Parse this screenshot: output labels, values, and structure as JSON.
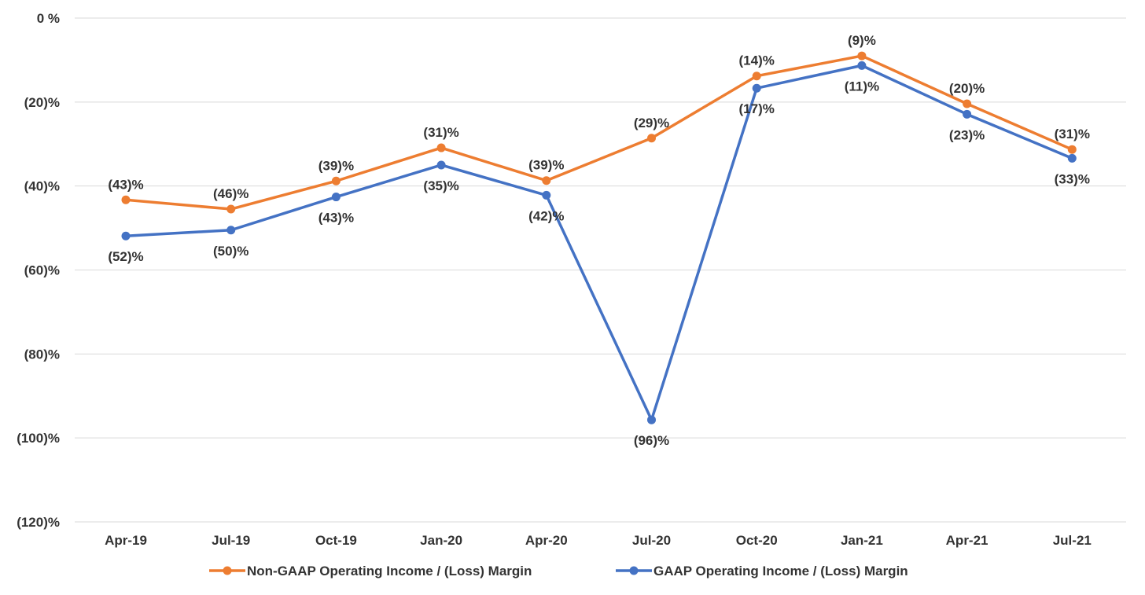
{
  "chart_data": {
    "type": "line",
    "title": "",
    "xlabel": "",
    "ylabel": "",
    "categories": [
      "Apr-19",
      "Jul-19",
      "Oct-19",
      "Jan-20",
      "Apr-20",
      "Jul-20",
      "Oct-20",
      "Jan-21",
      "Apr-21",
      "Jul-21"
    ],
    "ylim": [
      -120,
      0
    ],
    "yticks": [
      0,
      -20,
      -40,
      -60,
      -80,
      -100,
      -120
    ],
    "ytick_labels": [
      "0 %",
      "(20)%",
      "(40)%",
      "(60)%",
      "(80)%",
      "(100)%",
      "(120)%"
    ],
    "grid": true,
    "legend_position": "bottom",
    "series": [
      {
        "name": "Non-GAAP Operating Income / (Loss) Margin",
        "color": "#ED7D31",
        "values": [
          -43.3,
          -45.5,
          -38.8,
          -30.9,
          -38.7,
          -28.6,
          -13.8,
          -9.0,
          -20.4,
          -31.3
        ],
        "labels": [
          "(43)%",
          "(46)%",
          "(39)%",
          "(31)%",
          "(39)%",
          "(29)%",
          "(14)%",
          "(9)%",
          "(20)%",
          "(31)%"
        ],
        "label_position": "above"
      },
      {
        "name": "GAAP Operating Income / (Loss) Margin",
        "color": "#4472C4",
        "values": [
          -51.9,
          -50.5,
          -42.6,
          -35.0,
          -42.2,
          -95.7,
          -16.7,
          -11.3,
          -22.9,
          -33.4
        ],
        "labels": [
          "(52)%",
          "(50)%",
          "(43)%",
          "(35)%",
          "(42)%",
          "(96)%",
          "(17)%",
          "(11)%",
          "(23)%",
          "(33)%"
        ],
        "label_position": "below"
      }
    ]
  }
}
